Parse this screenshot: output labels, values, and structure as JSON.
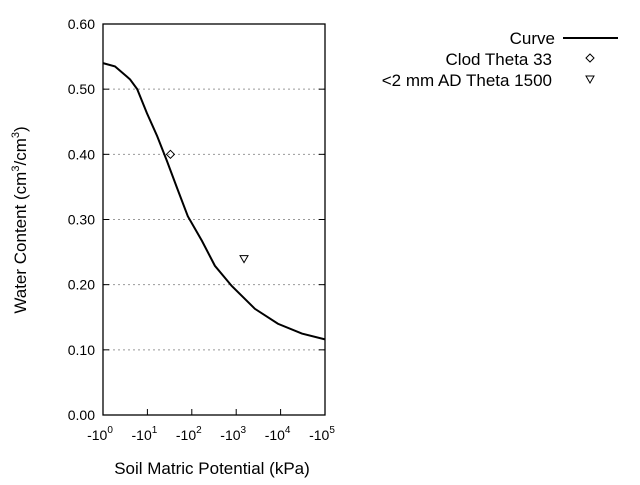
{
  "chart_data": {
    "type": "line",
    "title": "",
    "xlabel": "Soil Matric Potential (kPa)",
    "ylabel": "Water Content (cm3/cm3)",
    "x_scale": "log",
    "xlim": [
      -1,
      -100000
    ],
    "ylim": [
      0,
      0.6
    ],
    "x_ticks": [
      {
        "base": "-10",
        "exp": "0"
      },
      {
        "base": "-10",
        "exp": "1"
      },
      {
        "base": "-10",
        "exp": "2"
      },
      {
        "base": "-10",
        "exp": "3"
      },
      {
        "base": "-10",
        "exp": "4"
      },
      {
        "base": "-10",
        "exp": "5"
      }
    ],
    "y_ticks": [
      "0.00",
      "0.10",
      "0.20",
      "0.30",
      "0.40",
      "0.50",
      "0.60"
    ],
    "grid": "horizontal dotted",
    "legend_position": "top-right outside",
    "series": [
      {
        "name": "Curve",
        "kind": "line",
        "color": "#000000",
        "x": [
          -1,
          -1.86,
          -4.07,
          -5.89,
          -9.77,
          -16.6,
          -27.5,
          -46.8,
          -81.3,
          -170,
          -331,
          -794,
          -2630,
          -8710,
          -30200,
          -100000
        ],
        "y": [
          0.54,
          0.535,
          0.515,
          0.5,
          0.463,
          0.428,
          0.39,
          0.348,
          0.305,
          0.267,
          0.229,
          0.198,
          0.163,
          0.14,
          0.125,
          0.116
        ]
      },
      {
        "name": "Clod Theta 33",
        "kind": "diamond",
        "x": [
          -33
        ],
        "y": [
          0.4
        ]
      },
      {
        "name": "<2 mm AD Theta 1500",
        "kind": "triangle-down",
        "x": [
          -1500
        ],
        "y": [
          0.24
        ]
      }
    ]
  }
}
